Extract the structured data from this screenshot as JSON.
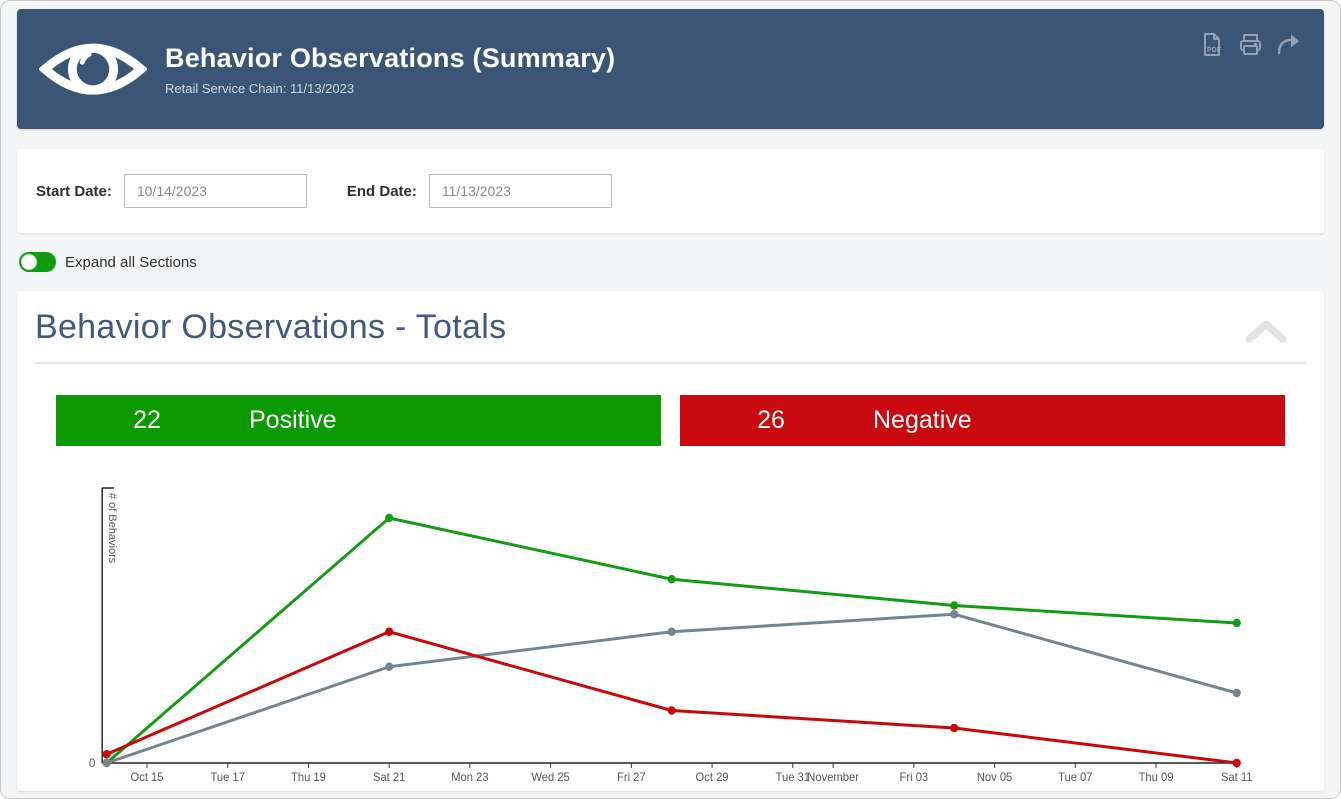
{
  "header": {
    "title": "Behavior Observations (Summary)",
    "subtitle": "Retail Service Chain: 11/13/2023",
    "bg_color": "#3b5577",
    "icon_color": "#93a1b6",
    "pdf_icon_label": "PDF"
  },
  "filters": {
    "start_label": "Start Date:",
    "start_value": "10/14/2023",
    "end_label": "End Date:",
    "end_value": "11/13/2023"
  },
  "toggle": {
    "label": "Expand all Sections",
    "state": "on",
    "on_color": "#0f9d0f"
  },
  "section": {
    "title": "Behavior Observations - Totals"
  },
  "badges": {
    "positive": {
      "count": "22",
      "label": "Positive",
      "color": "#0c9a03"
    },
    "negative": {
      "count": "26",
      "label": "Negative",
      "color": "#c9080f"
    }
  },
  "chart_data": {
    "type": "line",
    "title": "",
    "xlabel": "",
    "ylabel": "# of Behaviors",
    "ylim": [
      0,
      31.4
    ],
    "y_tick_labels": [
      "0"
    ],
    "grid": false,
    "legend": false,
    "x_dates": [
      "Oct 14",
      "Oct 21",
      "Oct 28",
      "Nov 04",
      "Nov 11"
    ],
    "x_day_offsets": [
      0,
      7,
      14,
      21,
      28
    ],
    "series": [
      {
        "name": "Positive (green)",
        "color": "#149b14",
        "values": [
          0,
          28,
          21,
          18,
          16
        ]
      },
      {
        "name": "Gray (unlabeled)",
        "color": "#75858f",
        "values": [
          0,
          11,
          15,
          17,
          8
        ]
      },
      {
        "name": "Negative (red)",
        "color": "#cc0707",
        "values": [
          1,
          15,
          6,
          4,
          0
        ]
      }
    ],
    "x_ticks": [
      {
        "label": "Oct 15",
        "day": 1
      },
      {
        "label": "Tue 17",
        "day": 3
      },
      {
        "label": "Thu 19",
        "day": 5
      },
      {
        "label": "Sat 21",
        "day": 7
      },
      {
        "label": "Mon 23",
        "day": 9
      },
      {
        "label": "Wed 25",
        "day": 11
      },
      {
        "label": "Fri 27",
        "day": 13
      },
      {
        "label": "Oct 29",
        "day": 15
      },
      {
        "label": "Tue 31",
        "day": 17
      },
      {
        "label": "November",
        "day": 18
      },
      {
        "label": "Fri 03",
        "day": 20
      },
      {
        "label": "Nov 05",
        "day": 22
      },
      {
        "label": "Tue 07",
        "day": 24
      },
      {
        "label": "Thu 09",
        "day": 26
      },
      {
        "label": "Sat 11",
        "day": 28
      }
    ]
  }
}
